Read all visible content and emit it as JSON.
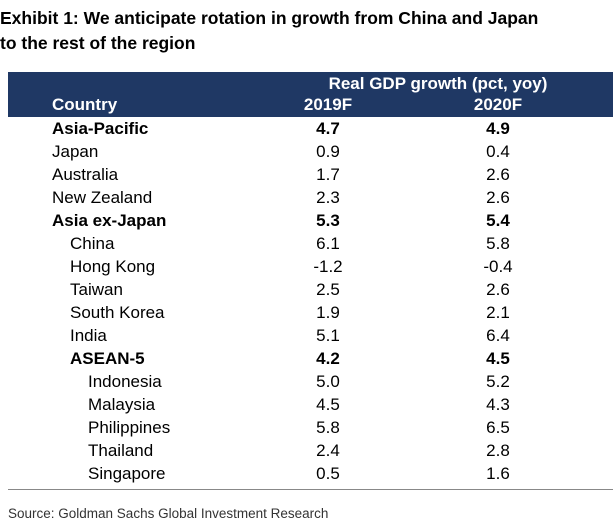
{
  "title": {
    "line1": "Exhibit 1: We anticipate rotation in growth from China and Japan",
    "line2": "to the rest of the region"
  },
  "header": {
    "group_label": "Real GDP growth (pct, yoy)",
    "country_label": "Country",
    "year1": "2019F",
    "year2": "2020F",
    "band_color": "#1f3864"
  },
  "rows": [
    {
      "name": "Asia-Pacific",
      "v2019": "4.7",
      "v2020": "4.9",
      "bold": true,
      "level": 0
    },
    {
      "name": "Japan",
      "v2019": "0.9",
      "v2020": "0.4",
      "bold": false,
      "level": 0
    },
    {
      "name": "Australia",
      "v2019": "1.7",
      "v2020": "2.6",
      "bold": false,
      "level": 0
    },
    {
      "name": "New Zealand",
      "v2019": "2.3",
      "v2020": "2.6",
      "bold": false,
      "level": 0
    },
    {
      "name": "Asia ex-Japan",
      "v2019": "5.3",
      "v2020": "5.4",
      "bold": true,
      "level": 0
    },
    {
      "name": "China",
      "v2019": "6.1",
      "v2020": "5.8",
      "bold": false,
      "level": 1
    },
    {
      "name": "Hong Kong",
      "v2019": "-1.2",
      "v2020": "-0.4",
      "bold": false,
      "level": 1
    },
    {
      "name": "Taiwan",
      "v2019": "2.5",
      "v2020": "2.6",
      "bold": false,
      "level": 1
    },
    {
      "name": "South Korea",
      "v2019": "1.9",
      "v2020": "2.1",
      "bold": false,
      "level": 1
    },
    {
      "name": "India",
      "v2019": "5.1",
      "v2020": "6.4",
      "bold": false,
      "level": 1
    },
    {
      "name": "ASEAN-5",
      "v2019": "4.2",
      "v2020": "4.5",
      "bold": true,
      "level": 1
    },
    {
      "name": "Indonesia",
      "v2019": "5.0",
      "v2020": "5.2",
      "bold": false,
      "level": 2
    },
    {
      "name": "Malaysia",
      "v2019": "4.5",
      "v2020": "4.3",
      "bold": false,
      "level": 2
    },
    {
      "name": "Philippines",
      "v2019": "5.8",
      "v2020": "6.5",
      "bold": false,
      "level": 2
    },
    {
      "name": "Thailand",
      "v2019": "2.4",
      "v2020": "2.8",
      "bold": false,
      "level": 2
    },
    {
      "name": "Singapore",
      "v2019": "0.5",
      "v2020": "1.6",
      "bold": false,
      "level": 2
    }
  ],
  "source": "Source: Goldman Sachs Global Investment Research"
}
